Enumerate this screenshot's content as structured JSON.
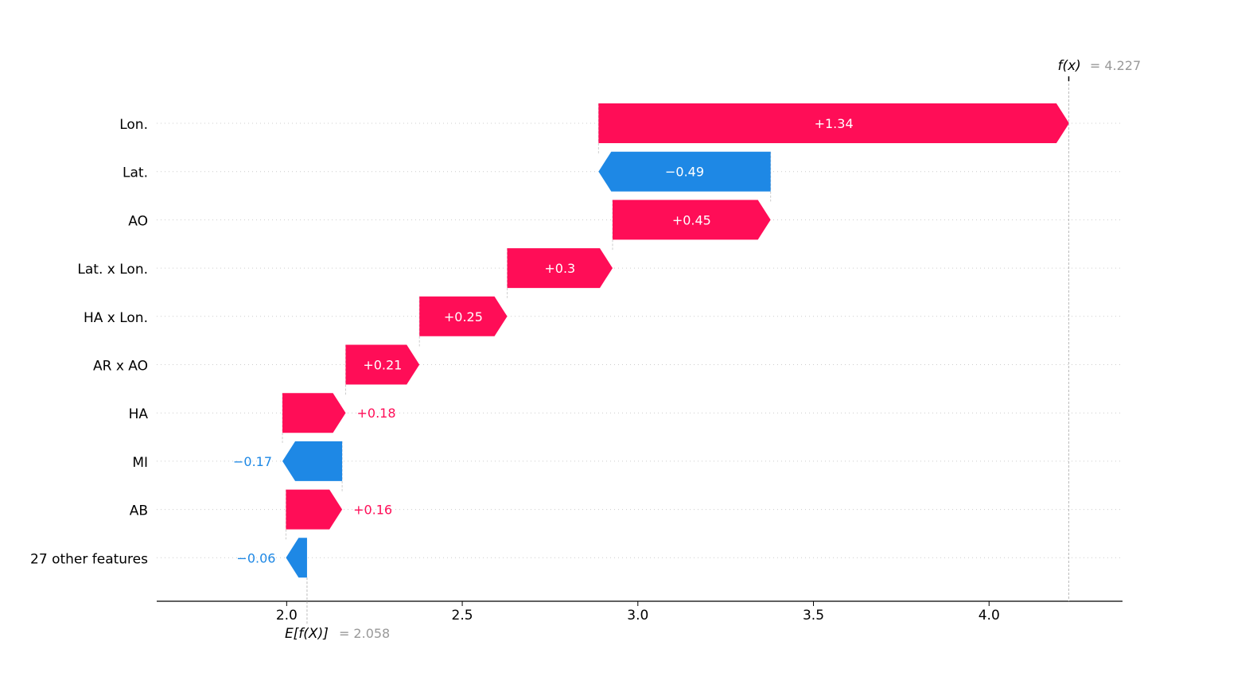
{
  "colors": {
    "positive": "#ff0d57",
    "negative": "#1e88e5",
    "grid": "#cccccc",
    "axis": "#000000",
    "muted": "#999999"
  },
  "chart_data": {
    "type": "waterfall",
    "xlim": [
      1.63,
      4.38
    ],
    "x_ticks": [
      2.0,
      2.5,
      3.0,
      3.5,
      4.0
    ],
    "x_tick_labels": [
      "2.0",
      "2.5",
      "3.0",
      "3.5",
      "4.0"
    ],
    "base_value": 2.058,
    "base_label": "E[f(X)]",
    "base_value_text": "= 2.058",
    "output_value": 4.227,
    "output_label": "f(x)",
    "output_value_text": "= 4.227",
    "features": [
      {
        "name": "Lon.",
        "value": 1.34,
        "label": "+1.34"
      },
      {
        "name": "Lat.",
        "value": -0.49,
        "label": "−0.49"
      },
      {
        "name": "AO",
        "value": 0.45,
        "label": "+0.45"
      },
      {
        "name": "Lat. x Lon.",
        "value": 0.3,
        "label": "+0.3"
      },
      {
        "name": "HA x Lon.",
        "value": 0.25,
        "label": "+0.25"
      },
      {
        "name": "AR x AO",
        "value": 0.21,
        "label": "+0.21"
      },
      {
        "name": "HA",
        "value": 0.18,
        "label": "+0.18"
      },
      {
        "name": "MI",
        "value": -0.17,
        "label": "−0.17"
      },
      {
        "name": "AB",
        "value": 0.16,
        "label": "+0.16"
      },
      {
        "name": "27 other features",
        "value": -0.06,
        "label": "−0.06"
      }
    ]
  }
}
